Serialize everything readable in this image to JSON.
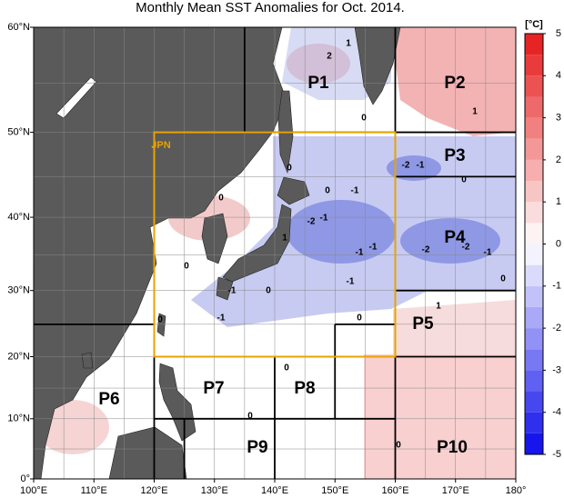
{
  "title": "Monthly Mean SST Anomalies for Oct. 2014.",
  "lon_ticks": [
    {
      "value": 100,
      "label": "100°E"
    },
    {
      "value": 110,
      "label": "110°E"
    },
    {
      "value": 120,
      "label": "120°E"
    },
    {
      "value": 130,
      "label": "130°E"
    },
    {
      "value": 140,
      "label": "140°E"
    },
    {
      "value": 150,
      "label": "150°E"
    },
    {
      "value": 160,
      "label": "160°E"
    },
    {
      "value": 170,
      "label": "170°E"
    },
    {
      "value": 180,
      "label": "180°"
    }
  ],
  "lat_ticks": [
    {
      "value": 0,
      "label": "0°"
    },
    {
      "value": 10,
      "label": "10°N"
    },
    {
      "value": 20,
      "label": "20°N"
    },
    {
      "value": 30,
      "label": "30°N"
    },
    {
      "value": 40,
      "label": "40°N"
    },
    {
      "value": 50,
      "label": "50°N"
    },
    {
      "value": 60,
      "label": "60°N"
    }
  ],
  "lonlim": [
    100,
    180
  ],
  "latlim": [
    0,
    60
  ],
  "colorbar": {
    "unit": "[°C]",
    "lim": [
      -5,
      5
    ],
    "ticks": [
      5,
      4,
      3,
      2,
      1,
      0,
      -1,
      -2,
      -3,
      -4,
      -5
    ]
  },
  "regions": [
    "JPN",
    "P1",
    "P2",
    "P3",
    "P4",
    "P5",
    "P6",
    "P7",
    "P8",
    "P9",
    "P10"
  ],
  "contour_labels": [
    "2",
    "1",
    "0",
    "1",
    "-2",
    "-1",
    "0",
    "-1",
    "0",
    "-2",
    "-1",
    "-1",
    "-1",
    "-2",
    "-2",
    "-1",
    "0",
    "1",
    "-1",
    "-1",
    "0",
    "0",
    "0",
    "0",
    "0",
    "1",
    "0",
    "-1",
    "0",
    "0",
    "0"
  ]
}
